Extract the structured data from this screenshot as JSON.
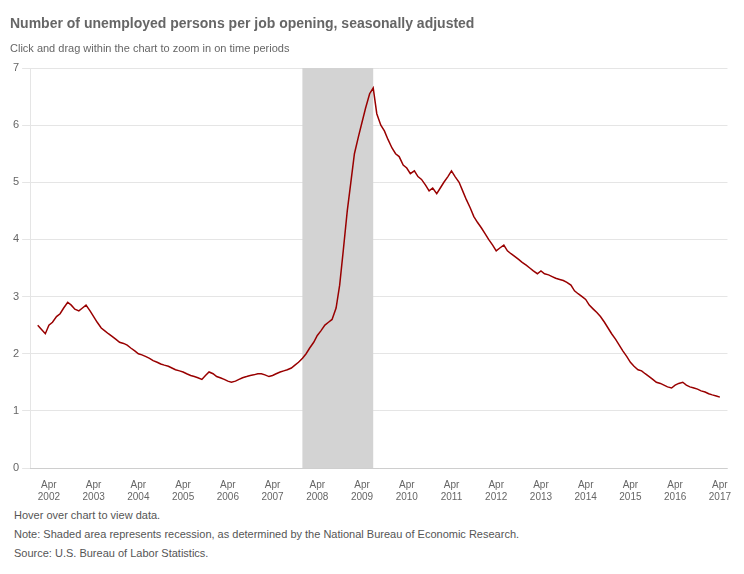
{
  "chart_data": {
    "type": "line",
    "title": "Number of unemployed persons per job opening, seasonally adjusted",
    "subtitle": "Click and drag within the chart to zoom in on time periods",
    "footer": [
      "Hover over chart to view data.",
      "Note: Shaded area represents recession, as determined by the National Bureau of Economic Research.",
      "Source: U.S. Bureau of Labor Statistics."
    ],
    "color": "#990000",
    "shaded_ranges": [
      {
        "start": 2007.917,
        "end": 2009.5,
        "color": "#d3d3d3"
      }
    ],
    "grid": "y",
    "xlim": [
      2001.83,
      2017.42
    ],
    "xticks": [
      {
        "value": 2002.25,
        "label": "Apr\n2002"
      },
      {
        "value": 2003.25,
        "label": "Apr\n2003"
      },
      {
        "value": 2004.25,
        "label": "Apr\n2004"
      },
      {
        "value": 2005.25,
        "label": "Apr\n2005"
      },
      {
        "value": 2006.25,
        "label": "Apr\n2006"
      },
      {
        "value": 2007.25,
        "label": "Apr\n2007"
      },
      {
        "value": 2008.25,
        "label": "Apr\n2008"
      },
      {
        "value": 2009.25,
        "label": "Apr\n2009"
      },
      {
        "value": 2010.25,
        "label": "Apr\n2010"
      },
      {
        "value": 2011.25,
        "label": "Apr\n2011"
      },
      {
        "value": 2012.25,
        "label": "Apr\n2012"
      },
      {
        "value": 2013.25,
        "label": "Apr\n2013"
      },
      {
        "value": 2014.25,
        "label": "Apr\n2014"
      },
      {
        "value": 2015.25,
        "label": "Apr\n2015"
      },
      {
        "value": 2016.25,
        "label": "Apr\n2016"
      },
      {
        "value": 2017.25,
        "label": "Apr\n2017"
      }
    ],
    "ylim": [
      0,
      7
    ],
    "yticks": [
      0,
      1,
      2,
      3,
      4,
      5,
      6,
      7
    ],
    "x": [
      2002.0,
      2002.08,
      2002.17,
      2002.25,
      2002.33,
      2002.42,
      2002.5,
      2002.58,
      2002.67,
      2002.75,
      2002.83,
      2002.92,
      2003.0,
      2003.08,
      2003.17,
      2003.25,
      2003.33,
      2003.42,
      2003.5,
      2003.58,
      2003.67,
      2003.75,
      2003.83,
      2003.92,
      2004.0,
      2004.08,
      2004.17,
      2004.25,
      2004.33,
      2004.42,
      2004.5,
      2004.58,
      2004.67,
      2004.75,
      2004.83,
      2004.92,
      2005.0,
      2005.08,
      2005.17,
      2005.25,
      2005.33,
      2005.42,
      2005.5,
      2005.58,
      2005.67,
      2005.75,
      2005.83,
      2005.92,
      2006.0,
      2006.08,
      2006.17,
      2006.25,
      2006.33,
      2006.42,
      2006.5,
      2006.58,
      2006.67,
      2006.75,
      2006.83,
      2006.92,
      2007.0,
      2007.08,
      2007.17,
      2007.25,
      2007.33,
      2007.42,
      2007.5,
      2007.58,
      2007.67,
      2007.75,
      2007.83,
      2007.92,
      2008.0,
      2008.08,
      2008.17,
      2008.25,
      2008.33,
      2008.42,
      2008.5,
      2008.58,
      2008.67,
      2008.75,
      2008.83,
      2008.92,
      2009.0,
      2009.08,
      2009.17,
      2009.25,
      2009.33,
      2009.42,
      2009.5,
      2009.58,
      2009.67,
      2009.75,
      2009.83,
      2009.92,
      2010.0,
      2010.08,
      2010.17,
      2010.25,
      2010.33,
      2010.42,
      2010.5,
      2010.58,
      2010.67,
      2010.75,
      2010.83,
      2010.92,
      2011.0,
      2011.08,
      2011.17,
      2011.25,
      2011.33,
      2011.42,
      2011.5,
      2011.58,
      2011.67,
      2011.75,
      2011.83,
      2011.92,
      2012.0,
      2012.08,
      2012.17,
      2012.25,
      2012.33,
      2012.42,
      2012.5,
      2012.58,
      2012.67,
      2012.75,
      2012.83,
      2012.92,
      2013.0,
      2013.08,
      2013.17,
      2013.25,
      2013.33,
      2013.42,
      2013.5,
      2013.58,
      2013.67,
      2013.75,
      2013.83,
      2013.92,
      2014.0,
      2014.08,
      2014.17,
      2014.25,
      2014.33,
      2014.42,
      2014.5,
      2014.58,
      2014.67,
      2014.75,
      2014.83,
      2014.92,
      2015.0,
      2015.08,
      2015.17,
      2015.25,
      2015.33,
      2015.42,
      2015.5,
      2015.58,
      2015.67,
      2015.75,
      2015.83,
      2015.92,
      2016.0,
      2016.08,
      2016.17,
      2016.25,
      2016.33,
      2016.42,
      2016.5,
      2016.58,
      2016.67,
      2016.75,
      2016.83,
      2016.92,
      2017.0,
      2017.08,
      2017.17,
      2017.25
    ],
    "values": [
      2.5,
      2.43,
      2.35,
      2.5,
      2.55,
      2.65,
      2.7,
      2.8,
      2.9,
      2.85,
      2.78,
      2.75,
      2.8,
      2.85,
      2.75,
      2.65,
      2.55,
      2.45,
      2.4,
      2.35,
      2.3,
      2.25,
      2.2,
      2.18,
      2.15,
      2.1,
      2.05,
      2.0,
      1.98,
      1.95,
      1.92,
      1.88,
      1.85,
      1.82,
      1.8,
      1.78,
      1.75,
      1.72,
      1.7,
      1.68,
      1.65,
      1.62,
      1.6,
      1.58,
      1.55,
      1.62,
      1.68,
      1.65,
      1.6,
      1.58,
      1.55,
      1.52,
      1.5,
      1.52,
      1.55,
      1.58,
      1.6,
      1.62,
      1.63,
      1.65,
      1.65,
      1.63,
      1.6,
      1.62,
      1.65,
      1.68,
      1.7,
      1.72,
      1.75,
      1.8,
      1.85,
      1.92,
      2.0,
      2.1,
      2.2,
      2.32,
      2.4,
      2.5,
      2.55,
      2.6,
      2.8,
      3.2,
      3.8,
      4.5,
      5.0,
      5.5,
      5.8,
      6.05,
      6.3,
      6.55,
      6.65,
      6.2,
      6.0,
      5.9,
      5.75,
      5.6,
      5.5,
      5.45,
      5.3,
      5.25,
      5.15,
      5.2,
      5.1,
      5.05,
      4.95,
      4.85,
      4.9,
      4.8,
      4.9,
      5.0,
      5.1,
      5.2,
      5.1,
      5.0,
      4.85,
      4.7,
      4.55,
      4.4,
      4.3,
      4.2,
      4.1,
      4.0,
      3.9,
      3.8,
      3.85,
      3.9,
      3.8,
      3.75,
      3.7,
      3.65,
      3.6,
      3.55,
      3.5,
      3.45,
      3.4,
      3.45,
      3.4,
      3.38,
      3.35,
      3.32,
      3.3,
      3.28,
      3.25,
      3.2,
      3.1,
      3.05,
      3.0,
      2.95,
      2.85,
      2.78,
      2.72,
      2.65,
      2.55,
      2.45,
      2.35,
      2.25,
      2.15,
      2.05,
      1.95,
      1.85,
      1.78,
      1.72,
      1.7,
      1.65,
      1.6,
      1.55,
      1.5,
      1.48,
      1.45,
      1.42,
      1.4,
      1.45,
      1.48,
      1.5,
      1.45,
      1.42,
      1.4,
      1.38,
      1.35,
      1.33,
      1.3,
      1.28,
      1.26,
      1.24
    ]
  }
}
